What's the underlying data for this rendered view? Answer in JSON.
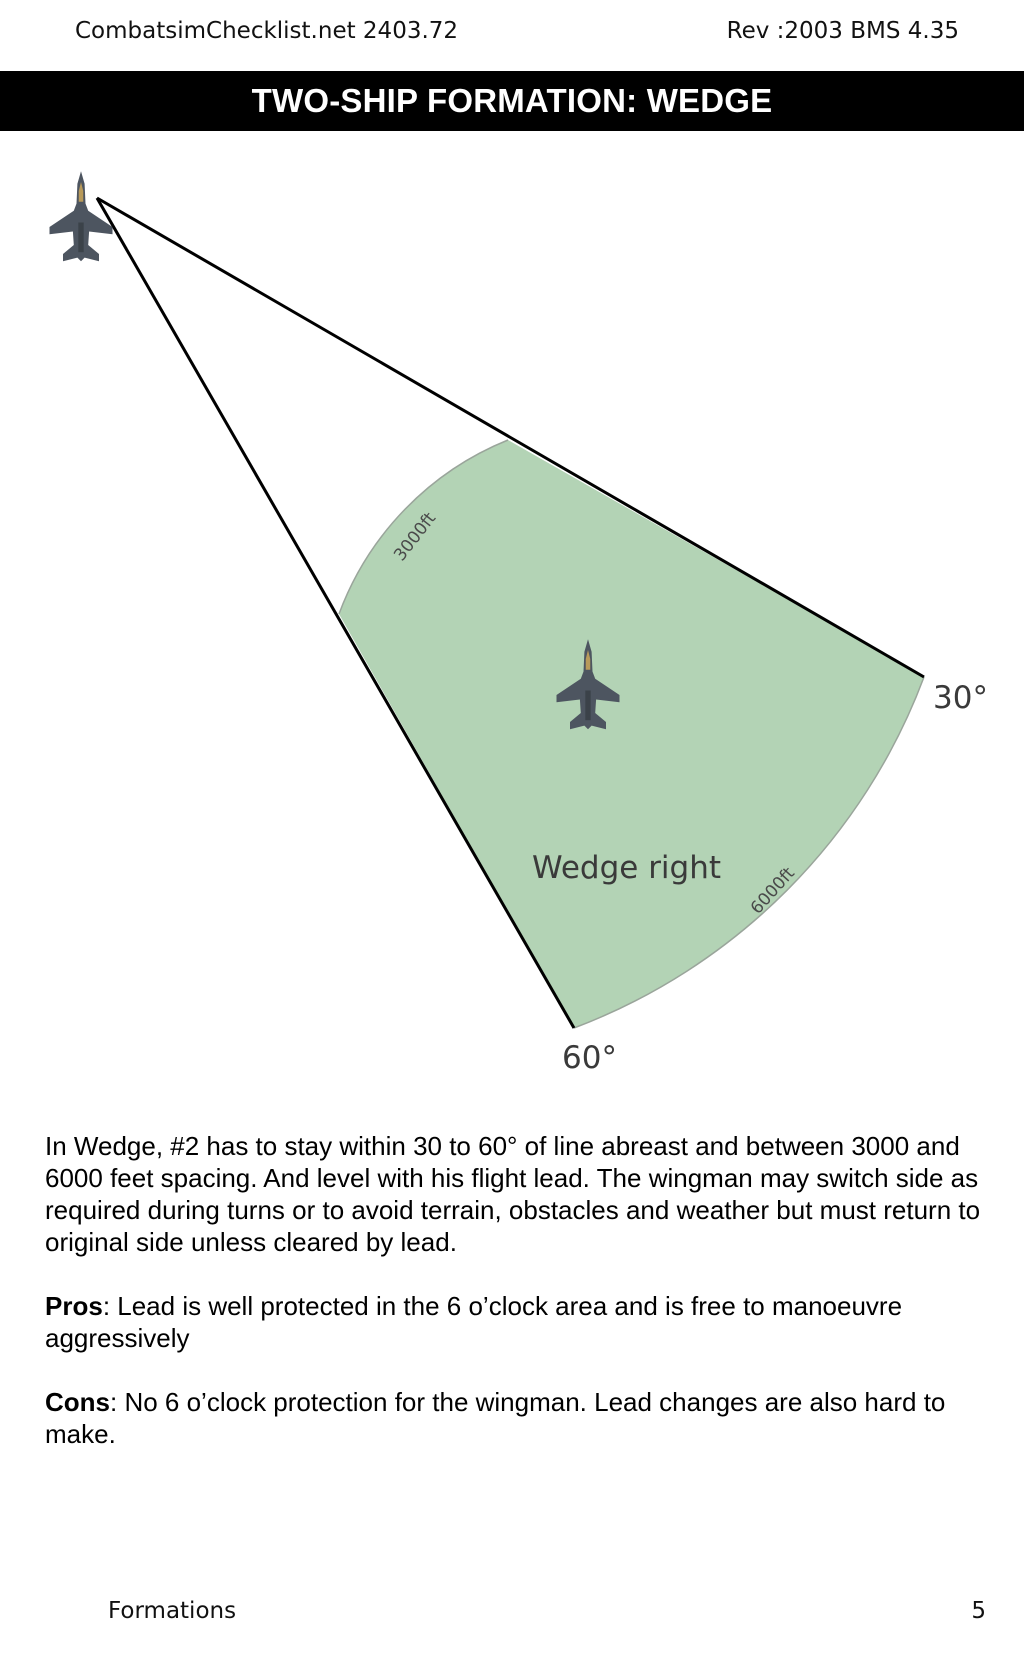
{
  "header": {
    "left": "CombatsimChecklist.net 2403.72",
    "right": "Rev :2003 BMS 4.35"
  },
  "title": "TWO-SHIP FORMATION: WEDGE",
  "diagram": {
    "label_30": "30°",
    "label_60": "60°",
    "arc_inner_label": "3000ft",
    "arc_outer_label": "6000ft",
    "zone_label": "Wedge right",
    "zone_color": "#b3d3b5",
    "aircraft_color": "#4d5560"
  },
  "body": {
    "paragraph": "In Wedge, #2 has to stay within 30 to 60° of line abreast and between 3000 and 6000 feet spacing. And level with his flight lead. The wingman may switch side as required during turns or to avoid terrain, obstacles and weather but must return to original side unless cleared by lead.",
    "pros_label": "Pros",
    "pros_text": ": Lead is well protected in the 6 o’clock area and is free to manoeuvre aggressively",
    "cons_label": "Cons",
    "cons_text": ": No 6 o’clock protection for the wingman. Lead changes are also hard to make."
  },
  "footer": {
    "left": "Formations",
    "right": "5"
  }
}
